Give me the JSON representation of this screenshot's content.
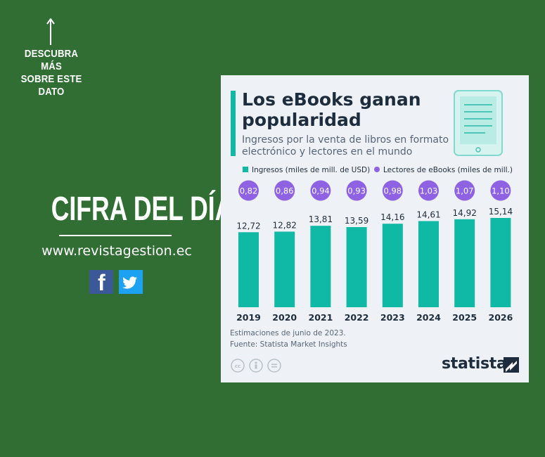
{
  "page": {
    "cta_text": "DESCUBRA MÁS\nSOBRE ESTE\nDATO",
    "headline": "CIFRA DEL DÍA",
    "website": "www.revistagestion.ec",
    "social": [
      "facebook-icon",
      "twitter-icon"
    ],
    "background_color": "#316e33"
  },
  "card": {
    "title": "Los eBooks ganan\npopularidad",
    "subtitle": "Ingresos por la venta de libros en formato electrónico y lectores en el mundo",
    "note": "Estimaciones de junio de 2023.",
    "source": "Fuente: Statista Market Insights",
    "brand": "statista",
    "icons": [
      "ereader-icon",
      "cc-license-icon",
      "statista-logo-icon"
    ]
  },
  "chart_data": {
    "type": "bar",
    "categories": [
      "2019",
      "2020",
      "2021",
      "2022",
      "2023",
      "2024",
      "2025",
      "2026"
    ],
    "series": [
      {
        "name": "Ingresos (miles de mill. de USD)",
        "values": [
          12.72,
          12.82,
          13.81,
          13.59,
          14.16,
          14.61,
          14.92,
          15.14
        ],
        "labels": [
          "12,72",
          "12,82",
          "13,81",
          "13,59",
          "14,16",
          "14,61",
          "14,92",
          "15,14"
        ],
        "color": "#10b8a6"
      },
      {
        "name": "Lectores de eBooks (miles de mill.)",
        "values": [
          0.82,
          0.86,
          0.94,
          0.93,
          0.98,
          1.03,
          1.07,
          1.1
        ],
        "labels": [
          "0,82",
          "0,86",
          "0,94",
          "0,93",
          "0,98",
          "1,03",
          "1,07",
          "1,10"
        ],
        "color": "#8e62e3",
        "marker": "circle badge"
      }
    ],
    "ylim": [
      0,
      15.14
    ]
  }
}
